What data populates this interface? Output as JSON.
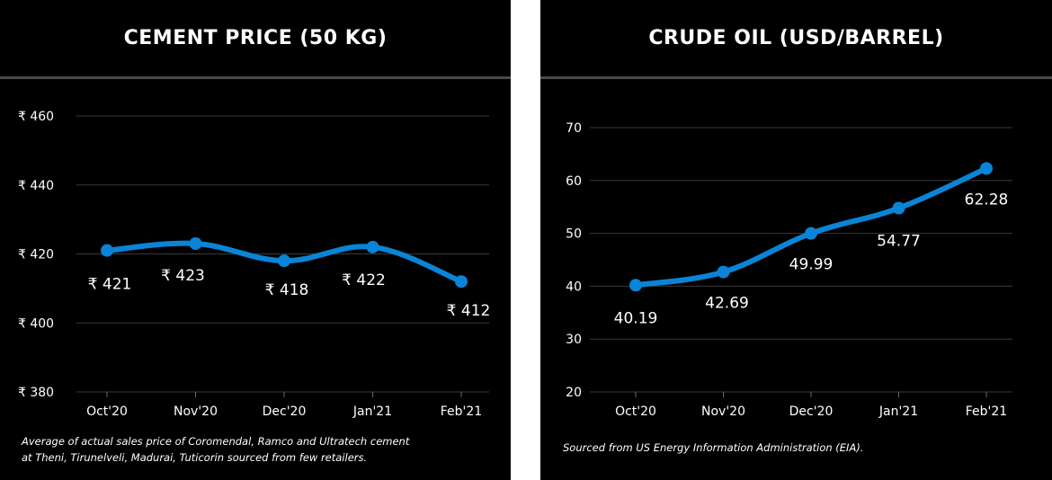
{
  "colors": {
    "background": "#000000",
    "series": "#0a84d6",
    "grid": "#3a3a3a",
    "divider": "#4a4a4a"
  },
  "footnotes": {
    "cement_line1": "Average of actual sales price of Coromendal, Ramco and Ultratech cement",
    "cement_line2": "at Theni, Tirunelveli, Madurai, Tuticorin sourced from few retailers.",
    "crude": "Sourced from US Energy Information Administration (EIA)."
  },
  "chart_data": [
    {
      "type": "line",
      "title": "CEMENT PRICE (50 KG)",
      "categories": [
        "Oct'20",
        "Nov'20",
        "Dec'20",
        "Jan'21",
        "Feb'21"
      ],
      "values": [
        421,
        423,
        418,
        422,
        412
      ],
      "data_labels": [
        "₹ 421",
        "₹ 423",
        "₹ 418",
        "₹ 422",
        "₹ 412"
      ],
      "yticks": [
        380,
        400,
        420,
        440,
        460
      ],
      "ytick_labels": [
        "₹ 380",
        "₹ 400",
        "₹ 420",
        "₹ 440",
        "₹ 460"
      ],
      "ylim": [
        380,
        460
      ],
      "label_position": "below",
      "grid": true,
      "smooth": true
    },
    {
      "type": "line",
      "title": "CRUDE OIL (USD/BARREL)",
      "categories": [
        "Oct'20",
        "Nov'20",
        "Dec'20",
        "Jan'21",
        "Feb'21"
      ],
      "values": [
        40.19,
        42.69,
        49.99,
        54.77,
        62.28
      ],
      "data_labels": [
        "40.19",
        "42.69",
        "49.99",
        "54.77",
        "62.28"
      ],
      "yticks": [
        20,
        30,
        40,
        50,
        60,
        70
      ],
      "ytick_labels": [
        "20",
        "30",
        "40",
        "50",
        "60",
        "70"
      ],
      "ylim": [
        20,
        70
      ],
      "label_position": "below",
      "grid": true,
      "smooth": true
    }
  ]
}
